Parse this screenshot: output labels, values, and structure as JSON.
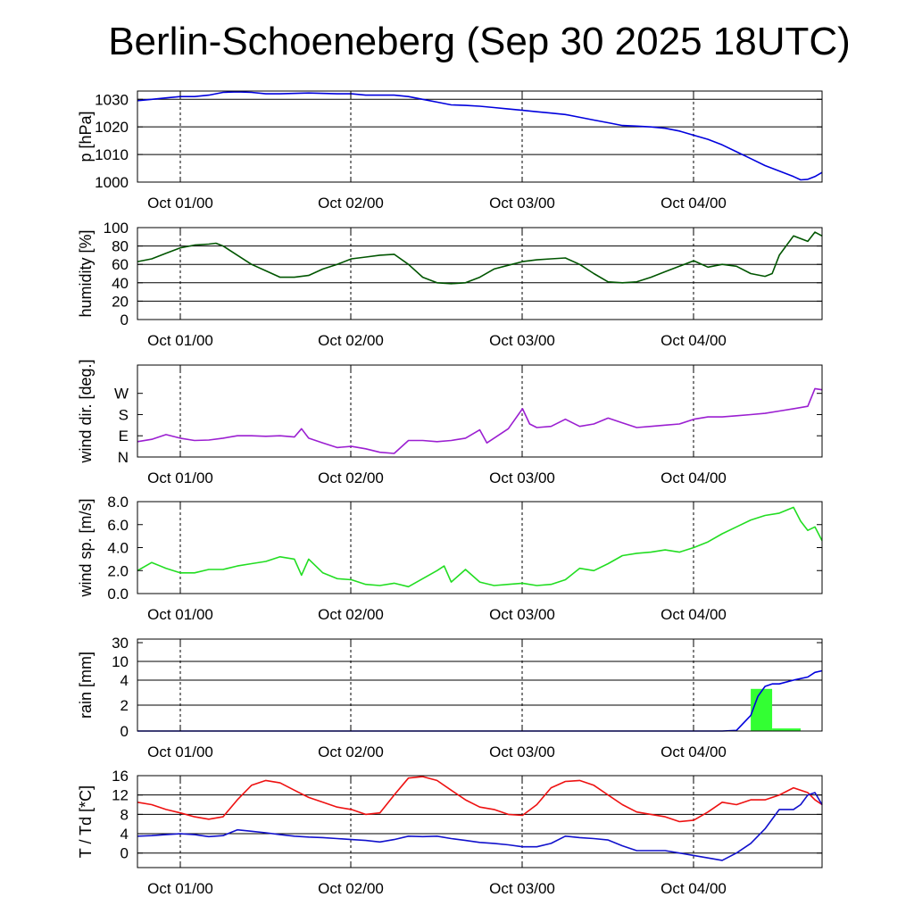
{
  "title": "Berlin-Schoeneberg (Sep 30 2025 18UTC)",
  "chart_data": [
    {
      "type": "line",
      "name": "pressure",
      "ylabel": "p [hPa]",
      "ylim": [
        1000,
        1033
      ],
      "yticks": [
        1000,
        1010,
        1020,
        1030
      ],
      "ytick_labels": [
        "1000",
        "1010",
        "1020",
        "1030"
      ],
      "grid_y": [
        1010,
        1020,
        1030
      ],
      "xlim": [
        -6,
        90
      ],
      "xtick_labels": [
        "Oct 01/00",
        "Oct 02/00",
        "Oct 03/00",
        "Oct 04/00"
      ],
      "series": [
        {
          "color": "#0000dd",
          "x": [
            -6,
            -4,
            -2,
            0,
            2,
            4,
            6,
            8,
            10,
            12,
            14,
            18,
            22,
            24,
            26,
            28,
            30,
            32,
            34,
            36,
            38,
            40,
            42,
            44,
            46,
            48,
            50,
            52,
            54,
            56,
            58,
            60,
            62,
            64,
            66,
            68,
            70,
            72,
            74,
            76,
            78,
            80,
            82,
            84,
            86,
            87,
            88,
            89,
            90
          ],
          "y": [
            1029.5,
            1030,
            1030.5,
            1031,
            1031,
            1031.5,
            1032.5,
            1032.7,
            1032.5,
            1032,
            1032,
            1032.3,
            1032,
            1032,
            1031.5,
            1031.5,
            1031.5,
            1031,
            1030,
            1029,
            1028,
            1027.8,
            1027.5,
            1027,
            1026.5,
            1026,
            1025.5,
            1025,
            1024.5,
            1023.5,
            1022.5,
            1021.5,
            1020.5,
            1020.3,
            1020,
            1019.5,
            1018.5,
            1017,
            1015.5,
            1013.5,
            1011,
            1008.5,
            1006,
            1004,
            1002,
            1000.8,
            1001,
            1002,
            1003.5
          ]
        }
      ]
    },
    {
      "type": "line",
      "name": "humidity",
      "ylabel": "humidity [%]",
      "ylim": [
        0,
        100
      ],
      "yticks": [
        0,
        20,
        40,
        60,
        80,
        100
      ],
      "ytick_labels": [
        "0",
        "20",
        "40",
        "60",
        "80",
        "100"
      ],
      "grid_y": [
        20,
        40,
        60,
        80
      ],
      "xlim": [
        -6,
        90
      ],
      "xtick_labels": [
        "Oct 01/00",
        "Oct 02/00",
        "Oct 03/00",
        "Oct 04/00"
      ],
      "series": [
        {
          "color": "#005500",
          "x": [
            -6,
            -4,
            -2,
            0,
            2,
            4,
            5,
            6,
            8,
            10,
            12,
            14,
            16,
            18,
            20,
            22,
            24,
            26,
            28,
            30,
            32,
            34,
            36,
            38,
            40,
            42,
            44,
            46,
            48,
            50,
            52,
            54,
            56,
            58,
            60,
            62,
            64,
            66,
            68,
            70,
            72,
            74,
            76,
            78,
            80,
            82,
            83,
            84,
            86,
            88,
            89,
            90
          ],
          "y": [
            63,
            66,
            72,
            78,
            81,
            82,
            83,
            80,
            70,
            60,
            53,
            46,
            46,
            48,
            55,
            60,
            66,
            68,
            70,
            71,
            60,
            46,
            40,
            39,
            40,
            46,
            55,
            59,
            63,
            65,
            66,
            67,
            60,
            50,
            41,
            40,
            41,
            46,
            52,
            58,
            64,
            57,
            60,
            58,
            50,
            47,
            50,
            70,
            91,
            85,
            95,
            91
          ]
        }
      ]
    },
    {
      "type": "line",
      "name": "wind direction",
      "ylabel": "wind dir. [deg.]",
      "ylim": [
        0,
        390
      ],
      "yticks": [
        0,
        90,
        180,
        270
      ],
      "ytick_labels": [
        "N",
        "E",
        "S",
        "W"
      ],
      "grid_y": [],
      "xlim": [
        -6,
        90
      ],
      "xtick_labels": [
        "Oct 01/00",
        "Oct 02/00",
        "Oct 03/00",
        "Oct 04/00"
      ],
      "series": [
        {
          "color": "#9b1fd1",
          "x": [
            -6,
            -4,
            -2,
            0,
            2,
            4,
            6,
            8,
            10,
            12,
            14,
            16,
            17,
            18,
            20,
            22,
            24,
            26,
            28,
            30,
            32,
            34,
            36,
            38,
            40,
            42,
            43,
            44,
            46,
            48,
            49,
            50,
            52,
            54,
            56,
            58,
            60,
            62,
            64,
            66,
            68,
            70,
            72,
            74,
            76,
            78,
            80,
            82,
            84,
            86,
            88,
            89,
            90
          ],
          "y": [
            65,
            75,
            95,
            80,
            70,
            72,
            80,
            90,
            90,
            88,
            90,
            85,
            120,
            80,
            60,
            40,
            45,
            35,
            20,
            15,
            70,
            70,
            65,
            70,
            80,
            115,
            60,
            80,
            120,
            205,
            140,
            125,
            130,
            160,
            130,
            140,
            165,
            145,
            125,
            130,
            135,
            140,
            160,
            170,
            170,
            175,
            180,
            185,
            195,
            205,
            215,
            290,
            285
          ]
        }
      ]
    },
    {
      "type": "line",
      "name": "wind speed",
      "ylabel": "wind sp. [m/s]",
      "ylim": [
        0,
        8
      ],
      "yticks": [
        0,
        2,
        4,
        6,
        8
      ],
      "ytick_labels": [
        "0.0",
        "2.0",
        "4.0",
        "6.0",
        "8.0"
      ],
      "grid_y": [],
      "xlim": [
        -6,
        90
      ],
      "xtick_labels": [
        "Oct 01/00",
        "Oct 02/00",
        "Oct 03/00",
        "Oct 04/00"
      ],
      "series": [
        {
          "color": "#22dd22",
          "x": [
            -6,
            -4,
            -2,
            0,
            2,
            4,
            6,
            8,
            10,
            12,
            14,
            16,
            17,
            18,
            20,
            22,
            24,
            26,
            28,
            30,
            32,
            34,
            36,
            37,
            38,
            40,
            42,
            44,
            46,
            48,
            50,
            52,
            54,
            56,
            58,
            60,
            62,
            64,
            66,
            68,
            70,
            72,
            74,
            76,
            78,
            80,
            82,
            84,
            86,
            87,
            88,
            89,
            90
          ],
          "y": [
            2,
            2.7,
            2.2,
            1.8,
            1.8,
            2.1,
            2.1,
            2.4,
            2.6,
            2.8,
            3.2,
            3,
            1.6,
            3,
            1.8,
            1.3,
            1.2,
            0.8,
            0.7,
            0.9,
            0.6,
            1.3,
            2,
            2.4,
            1,
            2.1,
            1,
            0.7,
            0.8,
            0.9,
            0.7,
            0.8,
            1.2,
            2.2,
            2,
            2.6,
            3.3,
            3.5,
            3.6,
            3.8,
            3.6,
            4,
            4.5,
            5.2,
            5.8,
            6.4,
            6.8,
            7,
            7.5,
            6.3,
            5.5,
            5.8,
            4.6
          ]
        }
      ]
    },
    {
      "type": "bar+line",
      "name": "rain",
      "ylabel": "rain [mm]",
      "yticks": [
        0,
        2,
        4,
        10,
        30
      ],
      "ytick_labels": [
        "0",
        "2",
        "4",
        "10",
        "30"
      ],
      "grid_y": [
        2,
        4,
        10
      ],
      "xlim": [
        -6,
        90
      ],
      "xtick_labels": [
        "Oct 01/00",
        "Oct 02/00",
        "Oct 03/00",
        "Oct 04/00"
      ],
      "bars": {
        "color": "#33ff33",
        "x0": [
          80,
          83
        ],
        "x1": [
          83,
          87
        ],
        "values": [
          3.3,
          0.2
        ]
      },
      "series": [
        {
          "color": "#0000dd",
          "x": [
            -6,
            76,
            78,
            80,
            81,
            82,
            83,
            84,
            86,
            88,
            89,
            90
          ],
          "y": [
            0,
            0,
            0.05,
            1.2,
            2.7,
            3.5,
            3.7,
            3.7,
            4,
            5,
            6.5,
            7
          ]
        }
      ]
    },
    {
      "type": "line",
      "name": "temperature and dewpoint",
      "ylabel": "T / Td [*C]",
      "ylim": [
        -3,
        16
      ],
      "yticks": [
        0,
        4,
        8,
        12,
        16
      ],
      "ytick_labels": [
        "0",
        "4",
        "8",
        "12",
        "16"
      ],
      "grid_y": [
        0,
        4,
        8,
        12
      ],
      "xlim": [
        -6,
        90
      ],
      "xtick_labels": [
        "Oct 01/00",
        "Oct 02/00",
        "Oct 03/00",
        "Oct 04/00"
      ],
      "series": [
        {
          "color": "#ee1111",
          "x": [
            -6,
            -4,
            -2,
            0,
            2,
            4,
            6,
            8,
            10,
            12,
            14,
            16,
            18,
            20,
            22,
            24,
            26,
            28,
            30,
            32,
            34,
            36,
            38,
            40,
            42,
            44,
            46,
            48,
            50,
            52,
            54,
            56,
            58,
            60,
            62,
            64,
            66,
            68,
            70,
            72,
            74,
            76,
            78,
            80,
            82,
            84,
            86,
            88,
            89,
            90
          ],
          "y": [
            10.5,
            10,
            9,
            8.3,
            7.5,
            7,
            7.5,
            11,
            14,
            15,
            14.5,
            13,
            11.5,
            10.5,
            9.5,
            9,
            8,
            8.3,
            12,
            15.5,
            15.8,
            15,
            13,
            11,
            9.5,
            9,
            8,
            7.8,
            10,
            13.5,
            14.8,
            15,
            14,
            12,
            10,
            8.5,
            8,
            7.5,
            6.5,
            6.8,
            8.5,
            10.5,
            10,
            11,
            11,
            12,
            13.5,
            12.5,
            11,
            10
          ]
        },
        {
          "color": "#1111cc",
          "x": [
            -6,
            -4,
            -2,
            0,
            2,
            4,
            6,
            8,
            10,
            12,
            14,
            16,
            18,
            20,
            22,
            24,
            26,
            28,
            30,
            32,
            34,
            36,
            38,
            40,
            42,
            44,
            46,
            48,
            50,
            52,
            54,
            56,
            58,
            60,
            62,
            64,
            66,
            68,
            70,
            72,
            74,
            76,
            78,
            80,
            82,
            84,
            86,
            87,
            88,
            89,
            90
          ],
          "y": [
            3.5,
            3.6,
            3.8,
            4,
            3.8,
            3.4,
            3.6,
            4.8,
            4.5,
            4.2,
            3.8,
            3.5,
            3.3,
            3.2,
            3,
            2.8,
            2.6,
            2.3,
            2.8,
            3.5,
            3.4,
            3.5,
            3,
            2.6,
            2.2,
            2,
            1.7,
            1.3,
            1.3,
            2,
            3.5,
            3.2,
            3,
            2.7,
            1.5,
            0.5,
            0.5,
            0.5,
            0,
            -0.5,
            -1,
            -1.5,
            0,
            2,
            5,
            9,
            9,
            10,
            12,
            12.5,
            10
          ]
        }
      ]
    }
  ]
}
